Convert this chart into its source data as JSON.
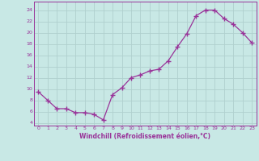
{
  "x": [
    0,
    1,
    2,
    3,
    4,
    5,
    6,
    7,
    8,
    9,
    10,
    11,
    12,
    13,
    14,
    15,
    16,
    17,
    18,
    19,
    20,
    21,
    22,
    23
  ],
  "y": [
    9.5,
    8.0,
    6.5,
    6.5,
    5.8,
    5.8,
    5.5,
    4.5,
    9.0,
    10.2,
    12.0,
    12.5,
    13.2,
    13.5,
    15.0,
    17.5,
    19.8,
    23.0,
    24.0,
    24.0,
    22.5,
    21.5,
    20.0,
    18.2
  ],
  "xlabel": "Windchill (Refroidissement éolien,°C)",
  "ylim": [
    3.5,
    25.5
  ],
  "xlim": [
    -0.5,
    23.5
  ],
  "yticks": [
    4,
    6,
    8,
    10,
    12,
    14,
    16,
    18,
    20,
    22,
    24
  ],
  "xticks": [
    0,
    1,
    2,
    3,
    4,
    5,
    6,
    7,
    8,
    9,
    10,
    11,
    12,
    13,
    14,
    15,
    16,
    17,
    18,
    19,
    20,
    21,
    22,
    23
  ],
  "line_color": "#993399",
  "marker": "+",
  "bg_color": "#c8e8e5",
  "grid_color": "#b0d0ce",
  "label_color": "#993399",
  "spine_color": "#993399"
}
